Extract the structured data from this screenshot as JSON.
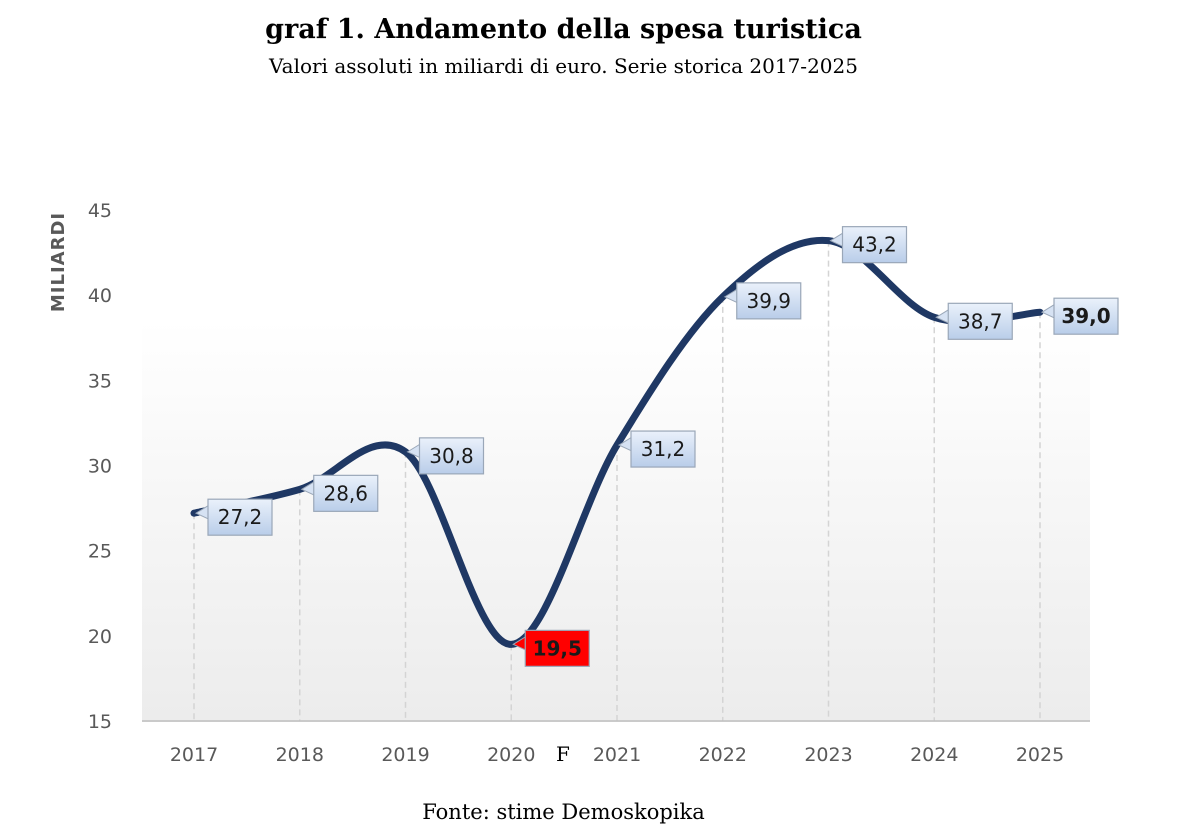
{
  "chart_data": {
    "type": "line",
    "title": "graf 1. Andamento della spesa turistica",
    "subtitle": "Valori assoluti in miliardi di euro. Serie storica 2017-2025",
    "ylabel": "MILIARDI",
    "xlabel": "",
    "ylim": [
      15,
      45
    ],
    "yticks": [
      "15",
      "20",
      "25",
      "30",
      "35",
      "40",
      "45"
    ],
    "categories": [
      "2017",
      "2018",
      "2019",
      "2020",
      "2021",
      "2022",
      "2023",
      "2024",
      "2025"
    ],
    "values": [
      27.2,
      28.6,
      30.8,
      19.5,
      31.2,
      39.9,
      43.2,
      38.7,
      39.0
    ],
    "data_labels": [
      "27,2",
      "28,6",
      "30,8",
      "19,5",
      "31,2",
      "39,9",
      "43,2",
      "38,7",
      "39,0"
    ],
    "highlight_index": 3,
    "bold_label_index": 8,
    "annotation": "F",
    "line_color": "#1f3864",
    "label_fill": "#c9d9f0",
    "highlight_fill": "#ff0000",
    "grid": "vertical dashed drop lines",
    "source": "Fonte: stime Demoskopika"
  }
}
